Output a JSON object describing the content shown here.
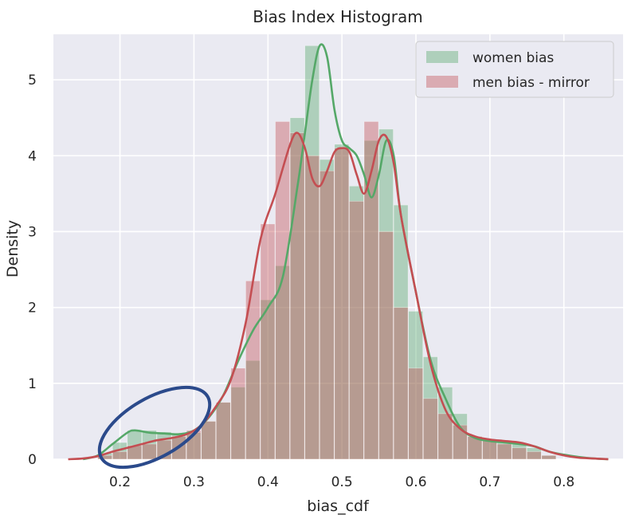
{
  "chart_data": {
    "type": "bar",
    "title": "Bias Index Histogram",
    "xlabel": "bias_cdf",
    "ylabel": "Density",
    "xlim": [
      0.11,
      0.88
    ],
    "ylim": [
      0,
      5.6
    ],
    "x_ticks": [
      "0.2",
      "0.3",
      "0.4",
      "0.5",
      "0.6",
      "0.7",
      "0.8"
    ],
    "y_ticks": [
      "0",
      "1",
      "2",
      "3",
      "4",
      "5"
    ],
    "grid": true,
    "legend_position": "top-right",
    "bin_width": 0.02,
    "colors": {
      "background": "#eaeaf2",
      "grid": "#ffffff",
      "women": "#55a868",
      "men": "#c44e52",
      "annotation": "#2b4a8b"
    },
    "series": [
      {
        "name": "women bias",
        "bin_starts": [
          0.17,
          0.19,
          0.21,
          0.23,
          0.25,
          0.27,
          0.29,
          0.31,
          0.33,
          0.35,
          0.37,
          0.39,
          0.41,
          0.43,
          0.45,
          0.47,
          0.49,
          0.51,
          0.53,
          0.55,
          0.57,
          0.59,
          0.61,
          0.63,
          0.65,
          0.67,
          0.69,
          0.71,
          0.73,
          0.75,
          0.77
        ],
        "values": [
          0.08,
          0.22,
          0.38,
          0.38,
          0.36,
          0.33,
          0.35,
          0.5,
          0.75,
          0.95,
          1.3,
          2.1,
          2.55,
          4.5,
          5.45,
          3.95,
          4.15,
          3.6,
          4.2,
          4.35,
          3.35,
          1.95,
          1.35,
          0.95,
          0.6,
          0.3,
          0.25,
          0.25,
          0.2,
          0.15,
          0.05
        ]
      },
      {
        "name": "men bias - mirror",
        "bin_starts": [
          0.17,
          0.19,
          0.21,
          0.23,
          0.25,
          0.27,
          0.29,
          0.31,
          0.33,
          0.35,
          0.37,
          0.39,
          0.41,
          0.43,
          0.45,
          0.47,
          0.49,
          0.51,
          0.53,
          0.55,
          0.57,
          0.59,
          0.61,
          0.63,
          0.65,
          0.67,
          0.69,
          0.71,
          0.73,
          0.75,
          0.77
        ],
        "values": [
          0.05,
          0.1,
          0.18,
          0.2,
          0.25,
          0.3,
          0.38,
          0.5,
          0.75,
          1.2,
          2.35,
          3.1,
          4.45,
          4.3,
          4.0,
          3.8,
          4.1,
          3.4,
          4.45,
          3.0,
          2.0,
          1.2,
          0.8,
          0.6,
          0.45,
          0.3,
          0.25,
          0.2,
          0.15,
          0.1,
          0.05
        ]
      }
    ],
    "kde": [
      {
        "name": "women bias",
        "x": [
          0.15,
          0.17,
          0.19,
          0.21,
          0.22,
          0.24,
          0.26,
          0.28,
          0.3,
          0.32,
          0.34,
          0.36,
          0.38,
          0.4,
          0.42,
          0.44,
          0.45,
          0.46,
          0.47,
          0.48,
          0.49,
          0.5,
          0.51,
          0.52,
          0.53,
          0.54,
          0.55,
          0.56,
          0.57,
          0.58,
          0.6,
          0.62,
          0.64,
          0.66,
          0.68,
          0.7,
          0.72,
          0.74,
          0.76,
          0.78,
          0.8,
          0.82,
          0.84,
          0.86
        ],
        "y": [
          0.0,
          0.05,
          0.2,
          0.35,
          0.38,
          0.35,
          0.34,
          0.33,
          0.38,
          0.55,
          0.85,
          1.3,
          1.7,
          2.0,
          2.4,
          3.6,
          4.3,
          5.0,
          5.45,
          5.3,
          4.6,
          4.2,
          4.1,
          4.0,
          3.75,
          3.45,
          3.75,
          4.2,
          4.0,
          3.2,
          2.2,
          1.3,
          0.8,
          0.42,
          0.28,
          0.24,
          0.22,
          0.2,
          0.17,
          0.1,
          0.06,
          0.03,
          0.01,
          0.0
        ]
      },
      {
        "name": "men bias - mirror",
        "x": [
          0.13,
          0.15,
          0.17,
          0.19,
          0.21,
          0.23,
          0.25,
          0.27,
          0.29,
          0.31,
          0.33,
          0.35,
          0.37,
          0.39,
          0.41,
          0.43,
          0.44,
          0.45,
          0.46,
          0.47,
          0.48,
          0.49,
          0.5,
          0.51,
          0.52,
          0.53,
          0.54,
          0.55,
          0.56,
          0.57,
          0.58,
          0.6,
          0.62,
          0.64,
          0.66,
          0.68,
          0.7,
          0.72,
          0.74,
          0.76,
          0.78,
          0.8,
          0.82,
          0.84,
          0.86
        ],
        "y": [
          0.0,
          0.01,
          0.04,
          0.1,
          0.15,
          0.2,
          0.25,
          0.28,
          0.33,
          0.45,
          0.7,
          1.05,
          1.8,
          2.9,
          3.5,
          4.15,
          4.3,
          4.1,
          3.7,
          3.6,
          3.8,
          4.05,
          4.1,
          4.05,
          3.75,
          3.5,
          3.8,
          4.2,
          4.25,
          3.9,
          3.2,
          2.2,
          1.25,
          0.65,
          0.4,
          0.3,
          0.26,
          0.24,
          0.22,
          0.17,
          0.1,
          0.05,
          0.02,
          0.01,
          0.0
        ]
      }
    ]
  }
}
